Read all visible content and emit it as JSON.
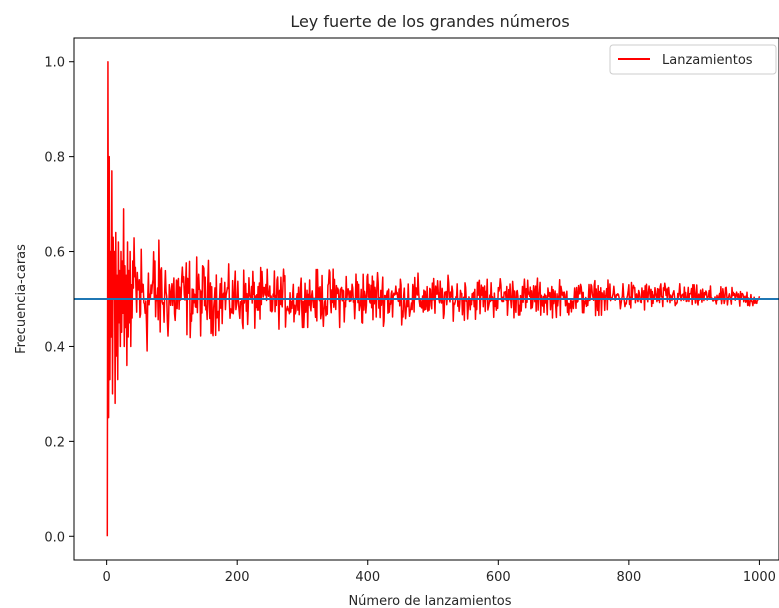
{
  "chart_data": {
    "type": "line",
    "title": "Ley fuerte de los grandes números",
    "xlabel": "Número de lanzamientos",
    "ylabel": "Frecuencia-caras",
    "xlim": [
      -50,
      1030
    ],
    "ylim": [
      -0.05,
      1.05
    ],
    "xticks": [
      0,
      200,
      400,
      600,
      800,
      1000
    ],
    "xtick_labels": [
      "0",
      "200",
      "400",
      "600",
      "800",
      "1000"
    ],
    "yticks": [
      0.0,
      0.2,
      0.4,
      0.6,
      0.8,
      1.0
    ],
    "ytick_labels": [
      "0.0",
      "0.2",
      "0.4",
      "0.6",
      "0.8",
      "1.0"
    ],
    "grid": false,
    "legend_position": "top-right",
    "series": [
      {
        "name": "Lanzamientos",
        "color": "#ff0000",
        "x_start": 1,
        "x_end": 1000,
        "values_head": [
          0.0,
          1.0,
          0.25,
          0.8,
          0.33,
          0.6,
          0.42,
          0.77,
          0.3,
          0.63,
          0.5,
          0.6,
          0.28,
          0.64,
          0.38,
          0.55,
          0.33,
          0.62,
          0.45,
          0.56,
          0.4,
          0.6,
          0.43,
          0.58,
          0.47,
          0.69,
          0.4,
          0.57,
          0.44,
          0.55,
          0.36,
          0.62,
          0.42,
          0.56,
          0.45,
          0.6,
          0.4,
          0.53,
          0.46,
          0.58
        ],
        "values_note_envelope": [
          [
            50,
            0.36,
            0.66
          ],
          [
            100,
            0.41,
            0.6
          ],
          [
            200,
            0.43,
            0.57
          ],
          [
            300,
            0.44,
            0.56
          ],
          [
            400,
            0.44,
            0.57
          ],
          [
            500,
            0.45,
            0.55
          ],
          [
            600,
            0.46,
            0.55
          ],
          [
            700,
            0.46,
            0.54
          ],
          [
            800,
            0.47,
            0.54
          ],
          [
            900,
            0.48,
            0.53
          ],
          [
            1000,
            0.48,
            0.52
          ]
        ]
      },
      {
        "name": "",
        "color": "#1f77b4",
        "type": "hline",
        "y": 0.5
      }
    ]
  }
}
